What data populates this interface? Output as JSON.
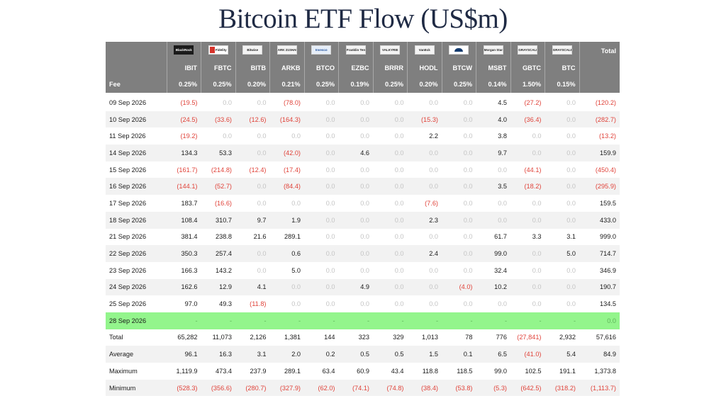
{
  "title": "Bitcoin ETF Flow (US$m)",
  "logos": [
    "BlackRock",
    "Fidelity",
    "Bitwise",
    "ARK 21SHARES",
    "Invesco",
    "Franklin Templeton",
    "VALKYRIE",
    "VanEck",
    "WisdomTree",
    "Morgan Stanley",
    "GRAYSCALE",
    "GRAYSCALE"
  ],
  "header": {
    "total_label": "Total",
    "tickers": [
      "IBIT",
      "FBTC",
      "BITB",
      "ARKB",
      "BTCO",
      "EZBC",
      "BRRR",
      "HODL",
      "BTCW",
      "MSBT",
      "GBTC",
      "BTC"
    ],
    "fee_label": "Fee",
    "fees": [
      "0.25%",
      "0.25%",
      "0.20%",
      "0.21%",
      "0.25%",
      "0.19%",
      "0.25%",
      "0.20%",
      "0.25%",
      "0.14%",
      "1.50%",
      "0.15%"
    ]
  },
  "rows": [
    {
      "date": "09 Sep 2026",
      "values": [
        "(19.5)",
        "0.0",
        "0.0",
        "(78.0)",
        "0.0",
        "0.0",
        "0.0",
        "0.0",
        "0.0",
        "4.5",
        "(27.2)",
        "0.0"
      ],
      "total": "(120.2)"
    },
    {
      "date": "10 Sep 2026",
      "values": [
        "(24.5)",
        "(33.6)",
        "(12.6)",
        "(164.3)",
        "0.0",
        "0.0",
        "0.0",
        "(15.3)",
        "0.0",
        "4.0",
        "(36.4)",
        "0.0"
      ],
      "total": "(282.7)"
    },
    {
      "date": "11 Sep 2026",
      "values": [
        "(19.2)",
        "0.0",
        "0.0",
        "0.0",
        "0.0",
        "0.0",
        "0.0",
        "2.2",
        "0.0",
        "3.8",
        "0.0",
        "0.0"
      ],
      "total": "(13.2)"
    },
    {
      "date": "14 Sep 2026",
      "values": [
        "134.3",
        "53.3",
        "0.0",
        "(42.0)",
        "0.0",
        "4.6",
        "0.0",
        "0.0",
        "0.0",
        "9.7",
        "0.0",
        "0.0"
      ],
      "total": "159.9"
    },
    {
      "date": "15 Sep 2026",
      "values": [
        "(161.7)",
        "(214.8)",
        "(12.4)",
        "(17.4)",
        "0.0",
        "0.0",
        "0.0",
        "0.0",
        "0.0",
        "0.0",
        "(44.1)",
        "0.0"
      ],
      "total": "(450.4)"
    },
    {
      "date": "16 Sep 2026",
      "values": [
        "(144.1)",
        "(52.7)",
        "0.0",
        "(84.4)",
        "0.0",
        "0.0",
        "0.0",
        "0.0",
        "0.0",
        "3.5",
        "(18.2)",
        "0.0"
      ],
      "total": "(295.9)"
    },
    {
      "date": "17 Sep 2026",
      "values": [
        "183.7",
        "(16.6)",
        "0.0",
        "0.0",
        "0.0",
        "0.0",
        "0.0",
        "(7.6)",
        "0.0",
        "0.0",
        "0.0",
        "0.0"
      ],
      "total": "159.5"
    },
    {
      "date": "18 Sep 2026",
      "values": [
        "108.4",
        "310.7",
        "9.7",
        "1.9",
        "0.0",
        "0.0",
        "0.0",
        "2.3",
        "0.0",
        "0.0",
        "0.0",
        "0.0"
      ],
      "total": "433.0"
    },
    {
      "date": "21 Sep 2026",
      "values": [
        "381.4",
        "238.8",
        "21.6",
        "289.1",
        "0.0",
        "0.0",
        "0.0",
        "0.0",
        "0.0",
        "61.7",
        "3.3",
        "3.1"
      ],
      "total": "999.0"
    },
    {
      "date": "22 Sep 2026",
      "values": [
        "350.3",
        "257.4",
        "0.0",
        "0.6",
        "0.0",
        "0.0",
        "0.0",
        "2.4",
        "0.0",
        "99.0",
        "0.0",
        "5.0"
      ],
      "total": "714.7"
    },
    {
      "date": "23 Sep 2026",
      "values": [
        "166.3",
        "143.2",
        "0.0",
        "5.0",
        "0.0",
        "0.0",
        "0.0",
        "0.0",
        "0.0",
        "32.4",
        "0.0",
        "0.0"
      ],
      "total": "346.9"
    },
    {
      "date": "24 Sep 2026",
      "values": [
        "162.6",
        "12.9",
        "4.1",
        "0.0",
        "0.0",
        "4.9",
        "0.0",
        "0.0",
        "(4.0)",
        "10.2",
        "0.0",
        "0.0"
      ],
      "total": "190.7"
    },
    {
      "date": "25 Sep 2026",
      "values": [
        "97.0",
        "49.3",
        "(11.8)",
        "0.0",
        "0.0",
        "0.0",
        "0.0",
        "0.0",
        "0.0",
        "0.0",
        "0.0",
        "0.0"
      ],
      "total": "134.5"
    },
    {
      "date": "28 Sep 2026",
      "highlight": true,
      "values": [
        "-",
        "-",
        "-",
        "-",
        "-",
        "-",
        "-",
        "-",
        "-",
        "-",
        "-",
        "-"
      ],
      "total": "0.0"
    }
  ],
  "stats": [
    {
      "label": "Total",
      "values": [
        "65,282",
        "11,073",
        "2,126",
        "1,381",
        "144",
        "323",
        "329",
        "1,013",
        "78",
        "776",
        "(27,841)",
        "2,932"
      ],
      "total": "57,616"
    },
    {
      "label": "Average",
      "values": [
        "96.1",
        "16.3",
        "3.1",
        "2.0",
        "0.2",
        "0.5",
        "0.5",
        "1.5",
        "0.1",
        "6.5",
        "(41.0)",
        "5.4"
      ],
      "total": "84.9"
    },
    {
      "label": "Maximum",
      "values": [
        "1,119.9",
        "473.4",
        "237.9",
        "289.1",
        "63.4",
        "60.9",
        "43.4",
        "118.8",
        "118.5",
        "99.0",
        "102.5",
        "191.1"
      ],
      "total": "1,373.8"
    },
    {
      "label": "Minimum",
      "values": [
        "(528.3)",
        "(356.6)",
        "(280.7)",
        "(327.9)",
        "(62.0)",
        "(74.1)",
        "(74.8)",
        "(38.4)",
        "(53.8)",
        "(5.3)",
        "(642.5)",
        "(318.2)"
      ],
      "total": "(1,113.7)"
    }
  ],
  "colors": {
    "header_bg": "#7f7f7f",
    "negative": "#e0433a",
    "zero": "#c4c4c4",
    "highlight": "#93f58c",
    "stripe": "#f2f2f2",
    "title": "#1f2a44"
  }
}
